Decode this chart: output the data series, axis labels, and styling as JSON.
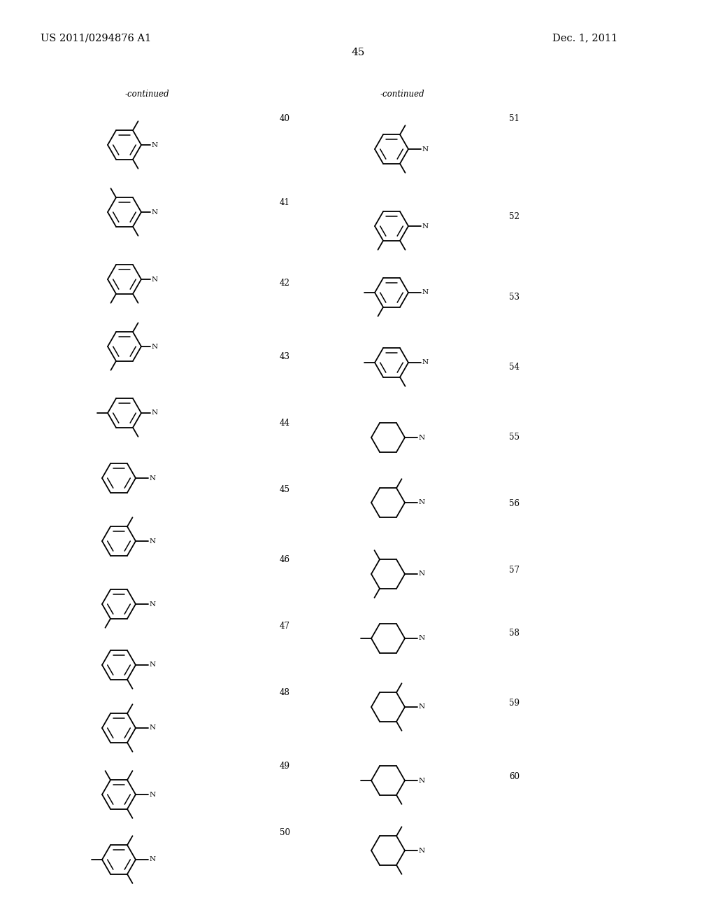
{
  "background_color": "#ffffff",
  "page_number": "45",
  "patent_number": "US 2011/0294876 A1",
  "date": "Dec. 1, 2011",
  "figsize": [
    10.24,
    13.2
  ],
  "dpi": 100
}
